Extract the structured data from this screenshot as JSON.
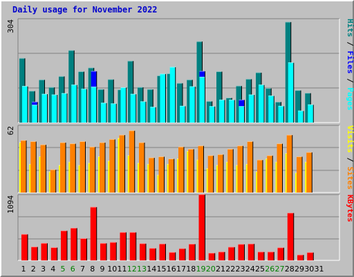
{
  "chart_data": [
    {
      "type": "bar",
      "title": "Daily usage for November 2022",
      "categories": [
        "1",
        "2",
        "3",
        "4",
        "5",
        "6",
        "7",
        "8",
        "9",
        "10",
        "11",
        "12",
        "13",
        "14",
        "15",
        "16",
        "17",
        "18",
        "19",
        "20",
        "21",
        "22",
        "23",
        "24",
        "25",
        "26",
        "27",
        "28",
        "29",
        "30",
        "31"
      ],
      "weekend_days": [
        "5",
        "6",
        "12",
        "13",
        "19",
        "20",
        "26",
        "27"
      ],
      "ylim": [
        0,
        304
      ],
      "ytick_label": "304",
      "legend": [
        "Pages",
        "Files",
        "Hits"
      ],
      "series": [
        {
          "name": "Hits",
          "color": "#008080",
          "values": [
            188,
            92,
            125,
            103,
            135,
            211,
            149,
            160,
            97,
            126,
            96,
            180,
            103,
            97,
            137,
            143,
            115,
            125,
            237,
            62,
            149,
            72,
            107,
            127,
            146,
            100,
            60,
            294,
            94,
            86,
            0
          ]
        },
        {
          "name": "Files",
          "color": "#0000ff",
          "values": [
            0,
            60,
            0,
            0,
            0,
            0,
            0,
            150,
            0,
            0,
            62,
            0,
            0,
            0,
            0,
            0,
            0,
            0,
            150,
            0,
            0,
            0,
            66,
            0,
            0,
            55,
            0,
            0,
            0,
            0,
            0
          ]
        },
        {
          "name": "Pages",
          "color": "#00ffff",
          "values": [
            106,
            51,
            83,
            81,
            85,
            110,
            98,
            104,
            57,
            55,
            102,
            83,
            61,
            45,
            142,
            162,
            48,
            105,
            133,
            47,
            66,
            66,
            47,
            81,
            110,
            78,
            48,
            175,
            34,
            52,
            0
          ]
        }
      ]
    },
    {
      "type": "bar",
      "categories": [
        "1",
        "2",
        "3",
        "4",
        "5",
        "6",
        "7",
        "8",
        "9",
        "10",
        "11",
        "12",
        "13",
        "14",
        "15",
        "16",
        "17",
        "18",
        "19",
        "20",
        "21",
        "22",
        "23",
        "24",
        "25",
        "26",
        "27",
        "28",
        "29",
        "30",
        "31"
      ],
      "ylim": [
        0,
        62
      ],
      "ytick_label": "62",
      "legend": [
        "Sites",
        "Visits"
      ],
      "series": [
        {
          "name": "Visits",
          "color": "#ffff00",
          "values": [
            46,
            26,
            33,
            19,
            25,
            28,
            25,
            27,
            33,
            29,
            50,
            34,
            27,
            26,
            16,
            26,
            31,
            38,
            30,
            22,
            25,
            28,
            25,
            26,
            19,
            31,
            28,
            36,
            18,
            28,
            0
          ]
        },
        {
          "name": "Sites",
          "color": "#ff8000",
          "values": [
            48,
            47,
            44,
            21,
            46,
            45,
            47,
            42,
            46,
            49,
            53,
            57,
            46,
            32,
            33,
            31,
            42,
            40,
            43,
            34,
            35,
            40,
            43,
            47,
            30,
            34,
            45,
            53,
            33,
            37,
            0
          ]
        }
      ]
    },
    {
      "type": "bar",
      "categories": [
        "1",
        "2",
        "3",
        "4",
        "5",
        "6",
        "7",
        "8",
        "9",
        "10",
        "11",
        "12",
        "13",
        "14",
        "15",
        "16",
        "17",
        "18",
        "19",
        "20",
        "21",
        "22",
        "23",
        "24",
        "25",
        "26",
        "27",
        "28",
        "29",
        "30",
        "31"
      ],
      "ylim": [
        0,
        1094
      ],
      "ytick_label": "1094",
      "legend": [
        "KBytes"
      ],
      "series": [
        {
          "name": "KBytes",
          "color": "#ff0000",
          "values": [
            433,
            223,
            284,
            212,
            491,
            536,
            363,
            885,
            283,
            299,
            465,
            465,
            278,
            200,
            273,
            133,
            195,
            270,
            1094,
            120,
            140,
            220,
            267,
            273,
            140,
            140,
            210,
            787,
            90,
            130,
            0
          ]
        }
      ]
    }
  ]
}
